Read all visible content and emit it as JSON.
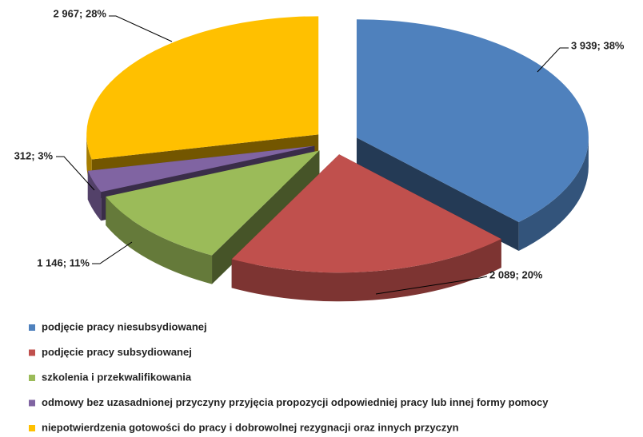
{
  "chart_data": {
    "type": "pie",
    "categories": [
      "podjęcie pracy niesubsydiowanej",
      "podjęcie pracy subsydiowanej",
      "szkolenia i przekwalifikowania",
      "odmowy bez uzasadnionej przyczyny przyjęcia propozycji odpowiedniej pracy lub innej formy pomocy",
      "niepotwierdzenia gotowości do pracy i dobrowolnej rezygnacji oraz innych przyczyn"
    ],
    "values": [
      3939,
      2089,
      1146,
      312,
      2967
    ],
    "value_labels": [
      "3 939; 38%",
      "2 089; 20%",
      "1 146; 11%",
      "312; 3%",
      "2 967; 28%"
    ],
    "colors": [
      "#4f81bd",
      "#c0504d",
      "#9bbb59",
      "#8064a2",
      "#ffc000"
    ]
  }
}
